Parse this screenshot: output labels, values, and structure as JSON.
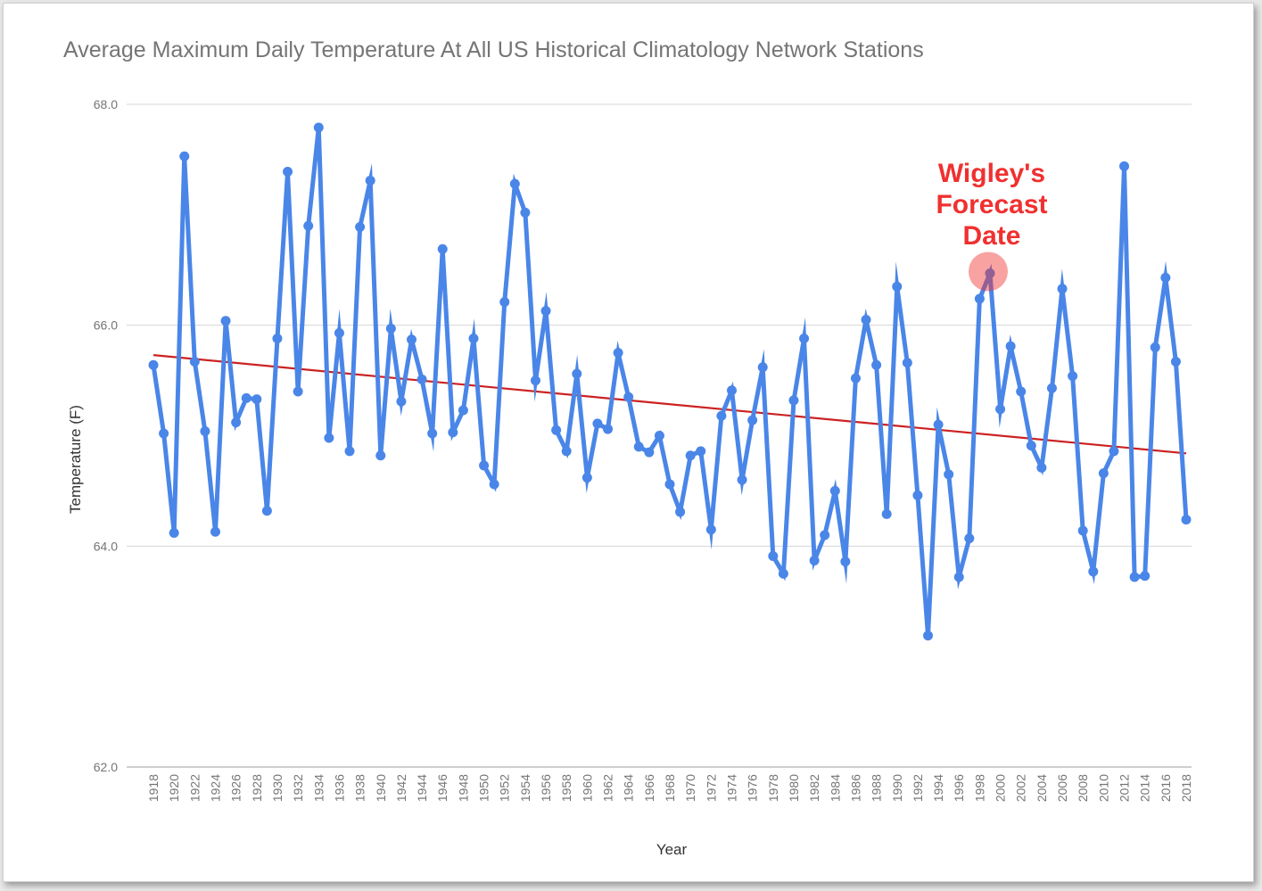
{
  "chart_data": {
    "type": "line",
    "title": "Average Maximum Daily Temperature At All US Historical Climatology Network Stations",
    "xlabel": "Year",
    "ylabel": "Temperature (F)",
    "ylim": [
      62,
      68
    ],
    "y_ticks": [
      "62.0",
      "64.0",
      "66.0",
      "68.0"
    ],
    "x_tick_labels": [
      "1918",
      "1920",
      "1922",
      "1924",
      "1926",
      "1928",
      "1930",
      "1932",
      "1934",
      "1936",
      "1938",
      "1940",
      "1942",
      "1944",
      "1946",
      "1948",
      "1950",
      "1952",
      "1954",
      "1956",
      "1958",
      "1960",
      "1962",
      "1964",
      "1966",
      "1968",
      "1970",
      "1972",
      "1974",
      "1976",
      "1978",
      "1980",
      "1982",
      "1984",
      "1986",
      "1988",
      "1990",
      "1992",
      "1994",
      "1996",
      "1998",
      "2000",
      "2002",
      "2004",
      "2006",
      "2008",
      "2010",
      "2012",
      "2014",
      "2016",
      "2018"
    ],
    "grid": true,
    "series": [
      {
        "color": "#4a86e8",
        "x": [
          1918,
          1919,
          1920,
          1921,
          1922,
          1923,
          1924,
          1925,
          1926,
          1927,
          1928,
          1929,
          1930,
          1931,
          1932,
          1933,
          1934,
          1935,
          1936,
          1937,
          1938,
          1939,
          1940,
          1941,
          1942,
          1943,
          1944,
          1945,
          1946,
          1947,
          1948,
          1949,
          1950,
          1951,
          1952,
          1953,
          1954,
          1955,
          1956,
          1957,
          1958,
          1959,
          1960,
          1961,
          1962,
          1963,
          1964,
          1965,
          1966,
          1967,
          1968,
          1969,
          1970,
          1971,
          1972,
          1973,
          1974,
          1975,
          1976,
          1977,
          1978,
          1979,
          1980,
          1981,
          1982,
          1983,
          1984,
          1985,
          1986,
          1987,
          1988,
          1989,
          1990,
          1991,
          1992,
          1993,
          1994,
          1995,
          1996,
          1997,
          1998,
          1999,
          2000,
          2001,
          2002,
          2003,
          2004,
          2005,
          2006,
          2007,
          2008,
          2009,
          2010,
          2011,
          2012,
          2013,
          2014,
          2015,
          2016,
          2017,
          2018
        ],
        "values": [
          65.64,
          65.02,
          64.12,
          67.53,
          65.67,
          65.04,
          64.13,
          66.04,
          65.12,
          65.34,
          65.33,
          64.32,
          65.88,
          67.39,
          65.4,
          66.9,
          67.79,
          64.98,
          65.93,
          64.86,
          66.89,
          67.31,
          64.82,
          65.97,
          65.31,
          65.87,
          65.51,
          65.02,
          66.69,
          65.03,
          65.23,
          65.88,
          64.73,
          64.56,
          66.21,
          67.28,
          67.02,
          65.5,
          66.13,
          65.05,
          64.86,
          65.56,
          64.62,
          65.11,
          65.06,
          65.75,
          65.35,
          64.9,
          64.85,
          65.0,
          64.56,
          64.31,
          64.82,
          64.86,
          64.15,
          65.18,
          65.41,
          64.6,
          65.14,
          65.62,
          63.91,
          63.75,
          65.32,
          65.88,
          63.87,
          64.1,
          64.5,
          63.86,
          65.52,
          66.05,
          65.64,
          64.29,
          66.35,
          65.66,
          64.46,
          63.19,
          65.1,
          64.65,
          63.72,
          64.07,
          66.24,
          66.47,
          65.24,
          65.81,
          65.4,
          64.91,
          64.71,
          65.43,
          66.33,
          65.54,
          64.14,
          63.77,
          64.66,
          64.86,
          67.44,
          63.72,
          63.73,
          65.8,
          66.43,
          65.67,
          64.24
        ]
      },
      {
        "type": "trendline",
        "color": "#cc2222",
        "x": [
          1918,
          2018
        ],
        "values": [
          65.73,
          64.84
        ]
      }
    ],
    "annotations": [
      {
        "lines": [
          "Wigley's",
          "Forecast",
          "Date"
        ],
        "x": 1999,
        "y": 66.47,
        "color": "#f03030",
        "marker": "circle"
      }
    ]
  }
}
